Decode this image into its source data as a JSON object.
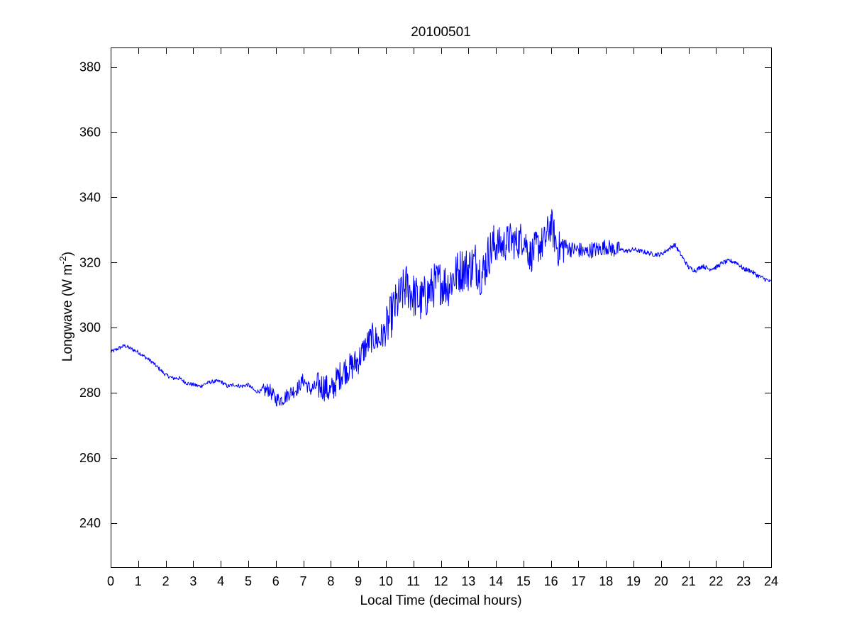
{
  "chart_data": {
    "type": "line",
    "title": "20100501",
    "xlabel": "Local Time (decimal hours)",
    "ylabel": {
      "main": "Longwave (W m",
      "sup": "-2",
      "close": ")"
    },
    "xlim": [
      0,
      24
    ],
    "ylim": [
      226.5,
      386
    ],
    "xticks": [
      0,
      1,
      2,
      3,
      4,
      5,
      6,
      7,
      8,
      9,
      10,
      11,
      12,
      13,
      14,
      15,
      16,
      17,
      18,
      19,
      20,
      21,
      22,
      23,
      24
    ],
    "yticks": [
      240,
      260,
      280,
      300,
      320,
      340,
      360,
      380
    ],
    "grid": false,
    "series": [
      {
        "color": "#0000ff",
        "x": [
          0,
          0.25,
          0.5,
          0.75,
          1,
          1.25,
          1.5,
          1.75,
          2,
          2.25,
          2.5,
          2.75,
          3,
          3.25,
          3.5,
          3.75,
          4,
          4.25,
          4.5,
          4.75,
          5,
          5.25,
          5.5,
          5.75,
          6,
          6.25,
          6.5,
          6.75,
          7,
          7.25,
          7.5,
          7.75,
          8,
          8.25,
          8.5,
          8.75,
          9,
          9.25,
          9.5,
          9.75,
          10,
          10.25,
          10.5,
          10.75,
          11,
          11.25,
          11.5,
          11.75,
          12,
          12.25,
          12.5,
          12.75,
          13,
          13.25,
          13.5,
          13.75,
          14,
          14.25,
          14.5,
          14.75,
          15,
          15.25,
          15.5,
          15.75,
          16,
          16.25,
          16.5,
          16.75,
          17,
          17.25,
          17.5,
          17.75,
          18,
          18.25,
          18.5,
          18.75,
          19,
          19.25,
          19.5,
          19.75,
          20,
          20.25,
          20.5,
          20.75,
          21,
          21.25,
          21.5,
          21.75,
          22,
          22.25,
          22.5,
          22.75,
          23,
          23.25,
          23.5,
          23.75,
          24
        ],
        "y": [
          292.5,
          293.5,
          294.5,
          293.5,
          292.5,
          291,
          289.5,
          287.5,
          285.5,
          284.5,
          284.5,
          283,
          282.5,
          282,
          283,
          283.5,
          283.5,
          282,
          282.5,
          282,
          282.5,
          280.5,
          280.5,
          281,
          278,
          278,
          280,
          281,
          284,
          281,
          282,
          282,
          280,
          284.5,
          287,
          288,
          290,
          294,
          297,
          296,
          299,
          305,
          309,
          313,
          310,
          308,
          310,
          313,
          314,
          313,
          316,
          318,
          318,
          320,
          316,
          323,
          326,
          325,
          327,
          326,
          328,
          322,
          325,
          326,
          332,
          324,
          325,
          324,
          324,
          323,
          324,
          324,
          325,
          324,
          324,
          323.5,
          324,
          323.5,
          323,
          322.5,
          322.5,
          324,
          325.5,
          322,
          318.5,
          317.5,
          319,
          318,
          318.5,
          320,
          320.5,
          320,
          318,
          317.5,
          316,
          315,
          314
        ]
      }
    ]
  }
}
